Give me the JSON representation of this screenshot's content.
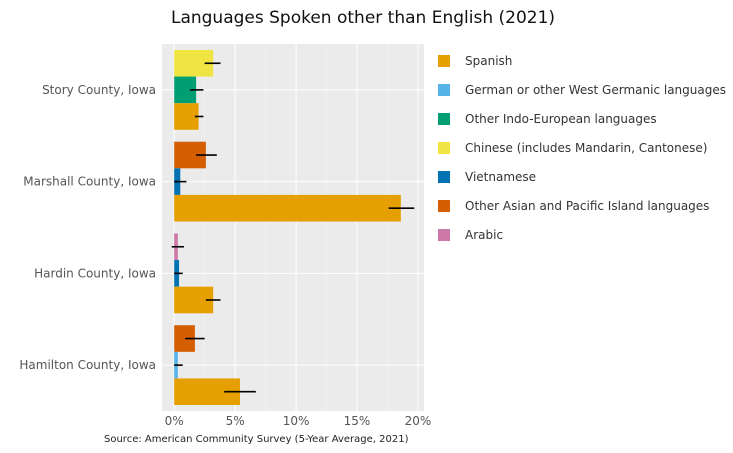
{
  "chart_data": {
    "type": "bar",
    "orientation": "horizontal",
    "title": "Languages Spoken other than English (2021)",
    "caption": "Source: American Community Survey (5-Year Average, 2021)",
    "xlim": [
      -0.01,
      0.205
    ],
    "x_ticks": [
      0,
      0.05,
      0.1,
      0.15,
      0.2
    ],
    "x_tick_labels": [
      "0%",
      "5%",
      "10%",
      "15%",
      "20%"
    ],
    "grid": true,
    "legend_position": "right",
    "series": [
      {
        "name": "Spanish",
        "color": "#E69F00"
      },
      {
        "name": "German or other West Germanic languages",
        "color": "#56B4E9"
      },
      {
        "name": "Other Indo-European languages",
        "color": "#009E73"
      },
      {
        "name": "Chinese (includes Mandarin, Cantonese)",
        "color": "#F0E442"
      },
      {
        "name": "Vietnamese",
        "color": "#0072B2"
      },
      {
        "name": "Other Asian and Pacific Island languages",
        "color": "#D55E00"
      },
      {
        "name": "Arabic",
        "color": "#CC79A7"
      }
    ],
    "categories": [
      {
        "label": "Story County, Iowa",
        "bars": [
          {
            "series": "Spanish",
            "value": 0.02,
            "err_low": 0.017,
            "err_high": 0.024
          },
          {
            "series": "Other Indo-European languages",
            "value": 0.018,
            "err_low": 0.013,
            "err_high": 0.024
          },
          {
            "series": "Chinese (includes Mandarin, Cantonese)",
            "value": 0.032,
            "err_low": 0.025,
            "err_high": 0.038
          }
        ]
      },
      {
        "label": "Marshall County, Iowa",
        "bars": [
          {
            "series": "Spanish",
            "value": 0.186,
            "err_low": 0.176,
            "err_high": 0.197
          },
          {
            "series": "Vietnamese",
            "value": 0.005,
            "err_low": 0.0,
            "err_high": 0.01
          },
          {
            "series": "Other Asian and Pacific Island languages",
            "value": 0.026,
            "err_low": 0.018,
            "err_high": 0.035
          }
        ]
      },
      {
        "label": "Hardin County, Iowa",
        "bars": [
          {
            "series": "Spanish",
            "value": 0.032,
            "err_low": 0.026,
            "err_high": 0.038
          },
          {
            "series": "Vietnamese",
            "value": 0.004,
            "err_low": 0.0,
            "err_high": 0.007
          },
          {
            "series": "Arabic",
            "value": 0.003,
            "err_low": -0.002,
            "err_high": 0.008
          }
        ]
      },
      {
        "label": "Hamilton County, Iowa",
        "bars": [
          {
            "series": "Spanish",
            "value": 0.054,
            "err_low": 0.041,
            "err_high": 0.067
          },
          {
            "series": "German or other West Germanic languages",
            "value": 0.003,
            "err_low": 0.0,
            "err_high": 0.007
          },
          {
            "series": "Other Asian and Pacific Island languages",
            "value": 0.017,
            "err_low": 0.009,
            "err_high": 0.025
          }
        ]
      }
    ]
  }
}
